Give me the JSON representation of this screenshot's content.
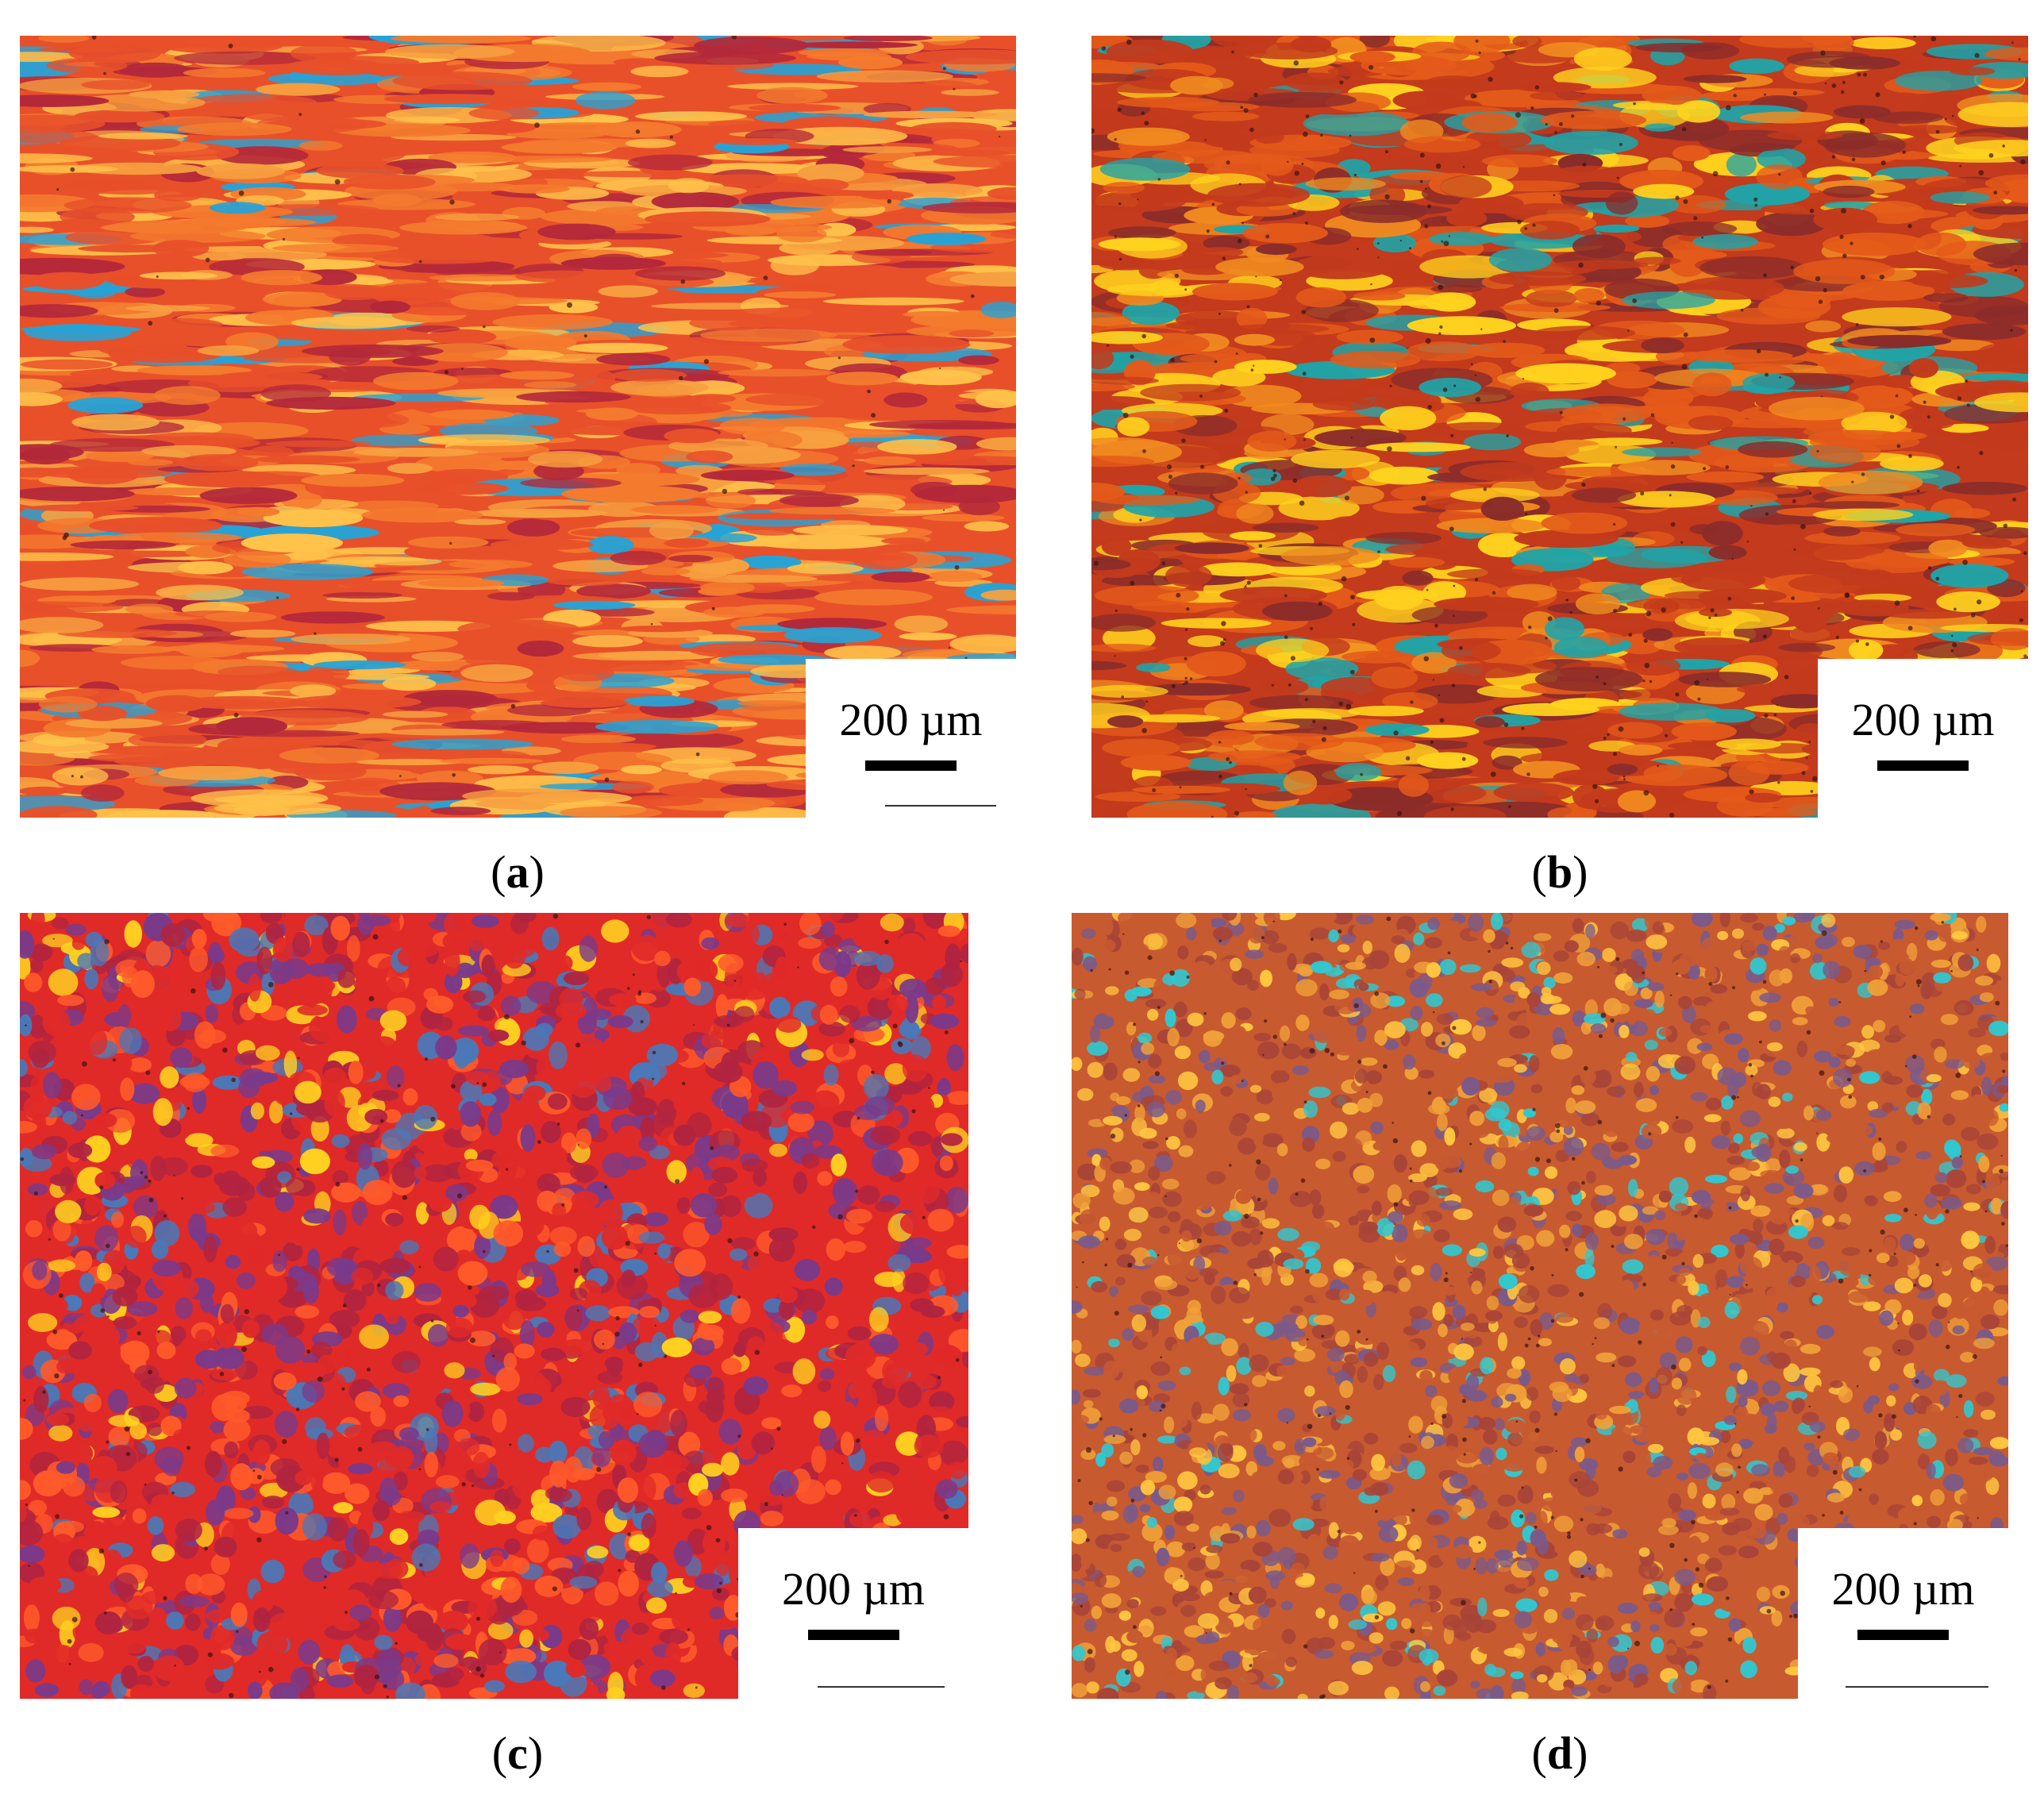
{
  "panels": [
    {
      "id": "a",
      "label": "a",
      "scale": "200 µm",
      "palette": [
        "#e8502a",
        "#f47a2e",
        "#ffc24a",
        "#b3283a",
        "#26a3d6",
        "#f6a040"
      ]
    },
    {
      "id": "b",
      "label": "b",
      "scale": "200 µm",
      "palette": [
        "#c33a1c",
        "#e45a1a",
        "#ffd21e",
        "#8a2c2a",
        "#1fa4a8",
        "#f08a20"
      ]
    },
    {
      "id": "c",
      "label": "c",
      "scale": "200 µm",
      "palette": [
        "#e02a28",
        "#b02440",
        "#ff5a2a",
        "#7a3a8a",
        "#ffd020",
        "#4a78b8"
      ]
    },
    {
      "id": "d",
      "label": "d",
      "scale": "200 µm",
      "palette": [
        "#c85a30",
        "#a84438",
        "#f0a038",
        "#7a5a8a",
        "#30c8d0",
        "#ffc640"
      ]
    }
  ]
}
